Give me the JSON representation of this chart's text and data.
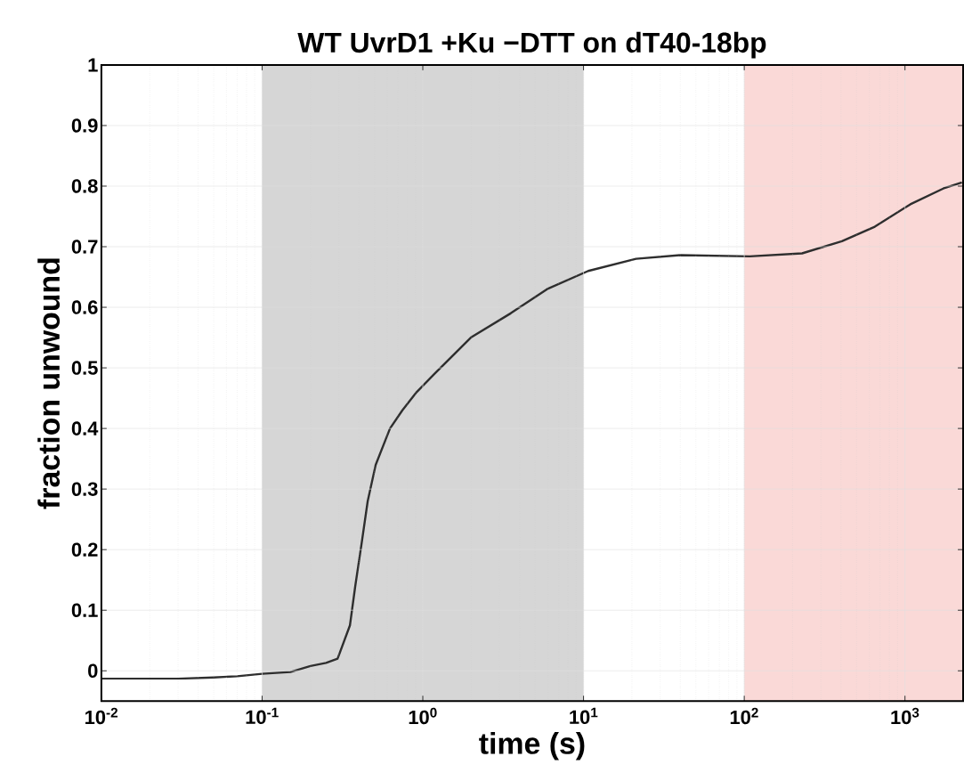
{
  "chart_data": {
    "type": "line",
    "title": "WT UvrD1 +Ku  −DTT on dT40-18bp",
    "xlabel": "time (s)",
    "ylabel": "fraction unwound",
    "log": "x",
    "grid": true,
    "xlim": [
      0.01,
      2300
    ],
    "ylim": [
      -0.05,
      1
    ],
    "xticks": [
      {
        "value": 0.01,
        "label": "10$^{-2}$"
      },
      {
        "value": 0.1,
        "label": "10$^{-1}$"
      },
      {
        "value": 1,
        "label": "10$^{0}$"
      },
      {
        "value": 10,
        "label": "10$^{1}$"
      },
      {
        "value": 100,
        "label": "10$^{2}$"
      },
      {
        "value": 1000,
        "label": "10$^{3}$"
      }
    ],
    "yticks": [
      0,
      0.1,
      0.2,
      0.3,
      0.4,
      0.5,
      0.6,
      0.7,
      0.8,
      0.9,
      1
    ],
    "bands": [
      {
        "axis": "x",
        "from": 0.1,
        "to": 10,
        "color": "#d6d6d6"
      },
      {
        "axis": "x",
        "from": 100,
        "to": 2300,
        "color": "#fad9d7"
      }
    ],
    "series": [
      {
        "color": "#2e2e2e",
        "line_style": "solid",
        "marker": "none",
        "x": [
          0.01,
          0.02,
          0.03,
          0.05,
          0.07,
          0.1,
          0.15,
          0.2,
          0.25,
          0.295,
          0.352,
          0.38,
          0.416,
          0.454,
          0.509,
          0.625,
          0.746,
          0.915,
          1.18,
          1.99,
          3.52,
          5.93,
          10.7,
          21.2,
          40,
          108,
          229,
          405,
          649,
          1080,
          1730,
          2260
        ],
        "values": [
          -0.013,
          -0.013,
          -0.013,
          -0.011,
          -0.009,
          -0.005,
          -0.002,
          0.008,
          0.013,
          0.02,
          0.075,
          0.14,
          0.21,
          0.28,
          0.34,
          0.4,
          0.43,
          0.46,
          0.49,
          0.55,
          0.59,
          0.63,
          0.66,
          0.68,
          0.686,
          0.684,
          0.689,
          0.709,
          0.733,
          0.77,
          0.796,
          0.806
        ]
      }
    ]
  }
}
